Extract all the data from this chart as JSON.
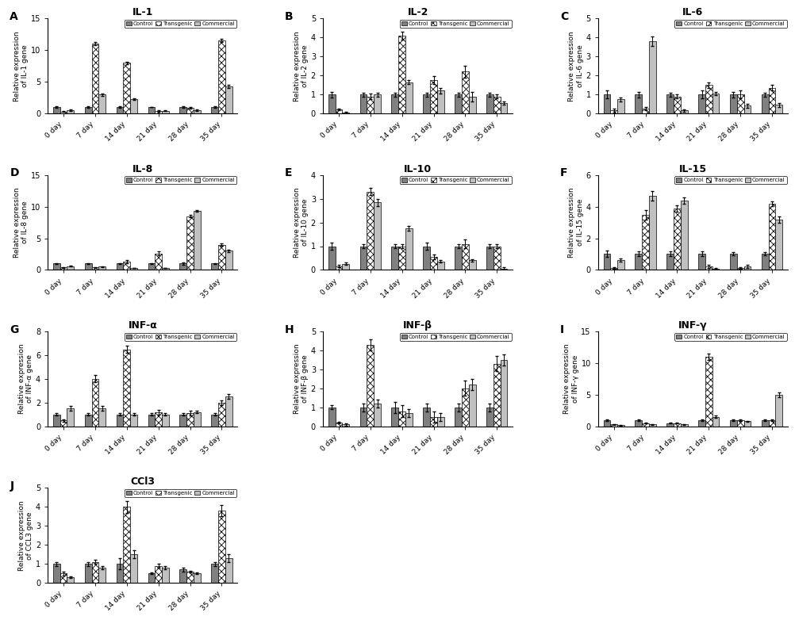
{
  "panels": [
    {
      "label": "A",
      "title": "IL-1",
      "ylabel": "Relative expression\nof IL-1 gene",
      "ylim": [
        0,
        15
      ],
      "yticks": [
        0,
        5,
        10,
        15
      ],
      "days": [
        "0 day",
        "7 day",
        "14 day",
        "21 day",
        "28 day",
        "35 day"
      ],
      "control": [
        1.0,
        1.0,
        1.0,
        1.0,
        1.0,
        1.0
      ],
      "transgenic": [
        0.3,
        11.0,
        8.0,
        0.4,
        0.9,
        11.5
      ],
      "commercial": [
        0.5,
        3.0,
        2.3,
        0.4,
        0.5,
        4.3
      ],
      "control_err": [
        0.1,
        0.1,
        0.1,
        0.05,
        0.1,
        0.1
      ],
      "transgenic_err": [
        0.1,
        0.25,
        0.2,
        0.1,
        0.15,
        0.25
      ],
      "commercial_err": [
        0.1,
        0.2,
        0.15,
        0.05,
        0.1,
        0.25
      ]
    },
    {
      "label": "B",
      "title": "IL-2",
      "ylabel": "Relative expression\nof IL-2 gene",
      "ylim": [
        0,
        5
      ],
      "yticks": [
        0,
        1,
        2,
        3,
        4,
        5
      ],
      "days": [
        "0 day",
        "7 day",
        "14 day",
        "21 day",
        "28 day",
        "35 day"
      ],
      "control": [
        1.0,
        1.0,
        1.0,
        1.0,
        1.0,
        1.0
      ],
      "transgenic": [
        0.2,
        0.9,
        4.1,
        1.75,
        2.2,
        0.9
      ],
      "commercial": [
        0.05,
        1.0,
        1.65,
        1.2,
        0.9,
        0.55
      ],
      "control_err": [
        0.15,
        0.1,
        0.1,
        0.1,
        0.1,
        0.1
      ],
      "transgenic_err": [
        0.05,
        0.15,
        0.2,
        0.2,
        0.3,
        0.1
      ],
      "commercial_err": [
        0.05,
        0.1,
        0.1,
        0.15,
        0.25,
        0.1
      ]
    },
    {
      "label": "C",
      "title": "IL-6",
      "ylabel": "Relative expression\nof IL-6 gene",
      "ylim": [
        0,
        5
      ],
      "yticks": [
        0,
        1,
        2,
        3,
        4,
        5
      ],
      "days": [
        "0 day",
        "7 day",
        "14 day",
        "21 day",
        "28 day",
        "35 day"
      ],
      "control": [
        1.0,
        1.0,
        1.0,
        1.0,
        1.0,
        1.0
      ],
      "transgenic": [
        0.15,
        0.25,
        0.9,
        1.5,
        1.0,
        1.35
      ],
      "commercial": [
        0.75,
        3.8,
        0.15,
        1.05,
        0.4,
        0.45
      ],
      "control_err": [
        0.2,
        0.15,
        0.1,
        0.2,
        0.15,
        0.1
      ],
      "transgenic_err": [
        0.1,
        0.1,
        0.1,
        0.15,
        0.2,
        0.15
      ],
      "commercial_err": [
        0.1,
        0.25,
        0.05,
        0.1,
        0.1,
        0.1
      ]
    },
    {
      "label": "D",
      "title": "IL-8",
      "ylabel": "Relative expression\nof IL-8 gene",
      "ylim": [
        0,
        15
      ],
      "yticks": [
        0,
        5,
        10,
        15
      ],
      "days": [
        "0 day",
        "7 day",
        "14 day",
        "21 day",
        "28 day",
        "35 day"
      ],
      "control": [
        1.0,
        1.0,
        1.0,
        1.0,
        1.0,
        1.0
      ],
      "transgenic": [
        0.4,
        0.4,
        1.3,
        2.6,
        8.5,
        4.0
      ],
      "commercial": [
        0.6,
        0.5,
        0.3,
        0.3,
        9.3,
        3.0
      ],
      "control_err": [
        0.1,
        0.1,
        0.1,
        0.1,
        0.15,
        0.1
      ],
      "transgenic_err": [
        0.05,
        0.05,
        0.2,
        0.3,
        0.2,
        0.15
      ],
      "commercial_err": [
        0.05,
        0.05,
        0.05,
        0.05,
        0.15,
        0.15
      ]
    },
    {
      "label": "E",
      "title": "IL-10",
      "ylabel": "Relative expression\nof IL-10 gene",
      "ylim": [
        0,
        4
      ],
      "yticks": [
        0,
        1,
        2,
        3,
        4
      ],
      "days": [
        "0 day",
        "7 day",
        "14 day",
        "21 day",
        "28 day",
        "35 day"
      ],
      "control": [
        1.0,
        1.0,
        1.0,
        1.0,
        1.0,
        1.0
      ],
      "transgenic": [
        0.15,
        3.3,
        1.0,
        0.55,
        1.1,
        1.0
      ],
      "commercial": [
        0.25,
        2.85,
        1.75,
        0.35,
        0.4,
        0.05
      ],
      "control_err": [
        0.15,
        0.1,
        0.1,
        0.15,
        0.1,
        0.1
      ],
      "transgenic_err": [
        0.05,
        0.15,
        0.1,
        0.1,
        0.2,
        0.1
      ],
      "commercial_err": [
        0.05,
        0.15,
        0.1,
        0.05,
        0.05,
        0.05
      ]
    },
    {
      "label": "F",
      "title": "IL-15",
      "ylabel": "Relative expression\nof IL-15 gene",
      "ylim": [
        0,
        6
      ],
      "yticks": [
        0,
        2,
        4,
        6
      ],
      "days": [
        "0 day",
        "7 day",
        "14 day",
        "21 day",
        "28 day",
        "35 day"
      ],
      "control": [
        1.0,
        1.0,
        1.0,
        1.0,
        1.0,
        1.0
      ],
      "transgenic": [
        0.1,
        3.5,
        3.9,
        0.2,
        0.1,
        4.2
      ],
      "commercial": [
        0.6,
        4.7,
        4.4,
        0.05,
        0.2,
        3.2
      ],
      "control_err": [
        0.2,
        0.15,
        0.15,
        0.15,
        0.1,
        0.1
      ],
      "transgenic_err": [
        0.05,
        0.3,
        0.2,
        0.1,
        0.05,
        0.15
      ],
      "commercial_err": [
        0.1,
        0.3,
        0.2,
        0.05,
        0.1,
        0.2
      ]
    },
    {
      "label": "G",
      "title": "INF-α",
      "ylabel": "Relative expression\nof INF-α gene",
      "ylim": [
        0,
        8
      ],
      "yticks": [
        0,
        2,
        4,
        6,
        8
      ],
      "days": [
        "0 day",
        "7 day",
        "14 day",
        "21 day",
        "28 day",
        "35 day"
      ],
      "control": [
        1.0,
        1.0,
        1.0,
        1.0,
        1.0,
        1.0
      ],
      "transgenic": [
        0.5,
        4.0,
        6.5,
        1.2,
        1.1,
        2.0
      ],
      "commercial": [
        1.5,
        1.5,
        1.0,
        1.0,
        1.2,
        2.5
      ],
      "control_err": [
        0.1,
        0.1,
        0.1,
        0.1,
        0.1,
        0.1
      ],
      "transgenic_err": [
        0.1,
        0.3,
        0.3,
        0.2,
        0.2,
        0.2
      ],
      "commercial_err": [
        0.2,
        0.2,
        0.1,
        0.1,
        0.1,
        0.2
      ]
    },
    {
      "label": "H",
      "title": "INF-β",
      "ylabel": "Relative expression\nof INF-β gene",
      "ylim": [
        0,
        5
      ],
      "yticks": [
        0,
        1,
        2,
        3,
        4,
        5
      ],
      "days": [
        "0 day",
        "7 day",
        "14 day",
        "21 day",
        "28 day",
        "35 day"
      ],
      "control": [
        1.0,
        1.0,
        1.0,
        1.0,
        1.0,
        1.0
      ],
      "transgenic": [
        0.2,
        4.3,
        0.8,
        0.5,
        2.0,
        3.3
      ],
      "commercial": [
        0.1,
        1.2,
        0.7,
        0.5,
        2.2,
        3.5
      ],
      "control_err": [
        0.1,
        0.2,
        0.3,
        0.2,
        0.2,
        0.2
      ],
      "transgenic_err": [
        0.05,
        0.3,
        0.3,
        0.3,
        0.4,
        0.4
      ],
      "commercial_err": [
        0.05,
        0.2,
        0.2,
        0.2,
        0.3,
        0.3
      ]
    },
    {
      "label": "I",
      "title": "INF-γ",
      "ylabel": "Relative expression\nof INF-γ gene",
      "ylim": [
        0,
        15
      ],
      "yticks": [
        0,
        5,
        10,
        15
      ],
      "days": [
        "0 day",
        "7 day",
        "14 day",
        "21 day",
        "28 day",
        "35 day"
      ],
      "control": [
        1.0,
        1.0,
        0.5,
        1.0,
        1.0,
        1.0
      ],
      "transgenic": [
        0.3,
        0.5,
        0.5,
        11.0,
        1.0,
        1.0
      ],
      "commercial": [
        0.2,
        0.3,
        0.3,
        1.5,
        0.8,
        5.0
      ],
      "control_err": [
        0.1,
        0.1,
        0.05,
        0.1,
        0.1,
        0.1
      ],
      "transgenic_err": [
        0.05,
        0.05,
        0.05,
        0.5,
        0.1,
        0.1
      ],
      "commercial_err": [
        0.05,
        0.05,
        0.05,
        0.2,
        0.1,
        0.4
      ]
    },
    {
      "label": "J",
      "title": "CCl3",
      "ylabel": "Relative expression\nof CCL3 gene",
      "ylim": [
        0,
        5
      ],
      "yticks": [
        0,
        1,
        2,
        3,
        4,
        5
      ],
      "days": [
        "0 day",
        "7 day",
        "14 day",
        "21 day",
        "28 day",
        "35 day"
      ],
      "control": [
        1.0,
        1.0,
        1.0,
        0.5,
        0.7,
        1.0
      ],
      "transgenic": [
        0.5,
        1.1,
        4.0,
        0.9,
        0.6,
        3.8
      ],
      "commercial": [
        0.3,
        0.8,
        1.5,
        0.8,
        0.5,
        1.3
      ],
      "control_err": [
        0.1,
        0.1,
        0.3,
        0.05,
        0.1,
        0.1
      ],
      "transgenic_err": [
        0.1,
        0.1,
        0.3,
        0.1,
        0.05,
        0.3
      ],
      "commercial_err": [
        0.05,
        0.1,
        0.2,
        0.1,
        0.05,
        0.2
      ]
    }
  ],
  "control_color": "#808080",
  "commercial_color": "#c0c0c0",
  "bar_width": 0.22,
  "bg_color": "#ffffff"
}
